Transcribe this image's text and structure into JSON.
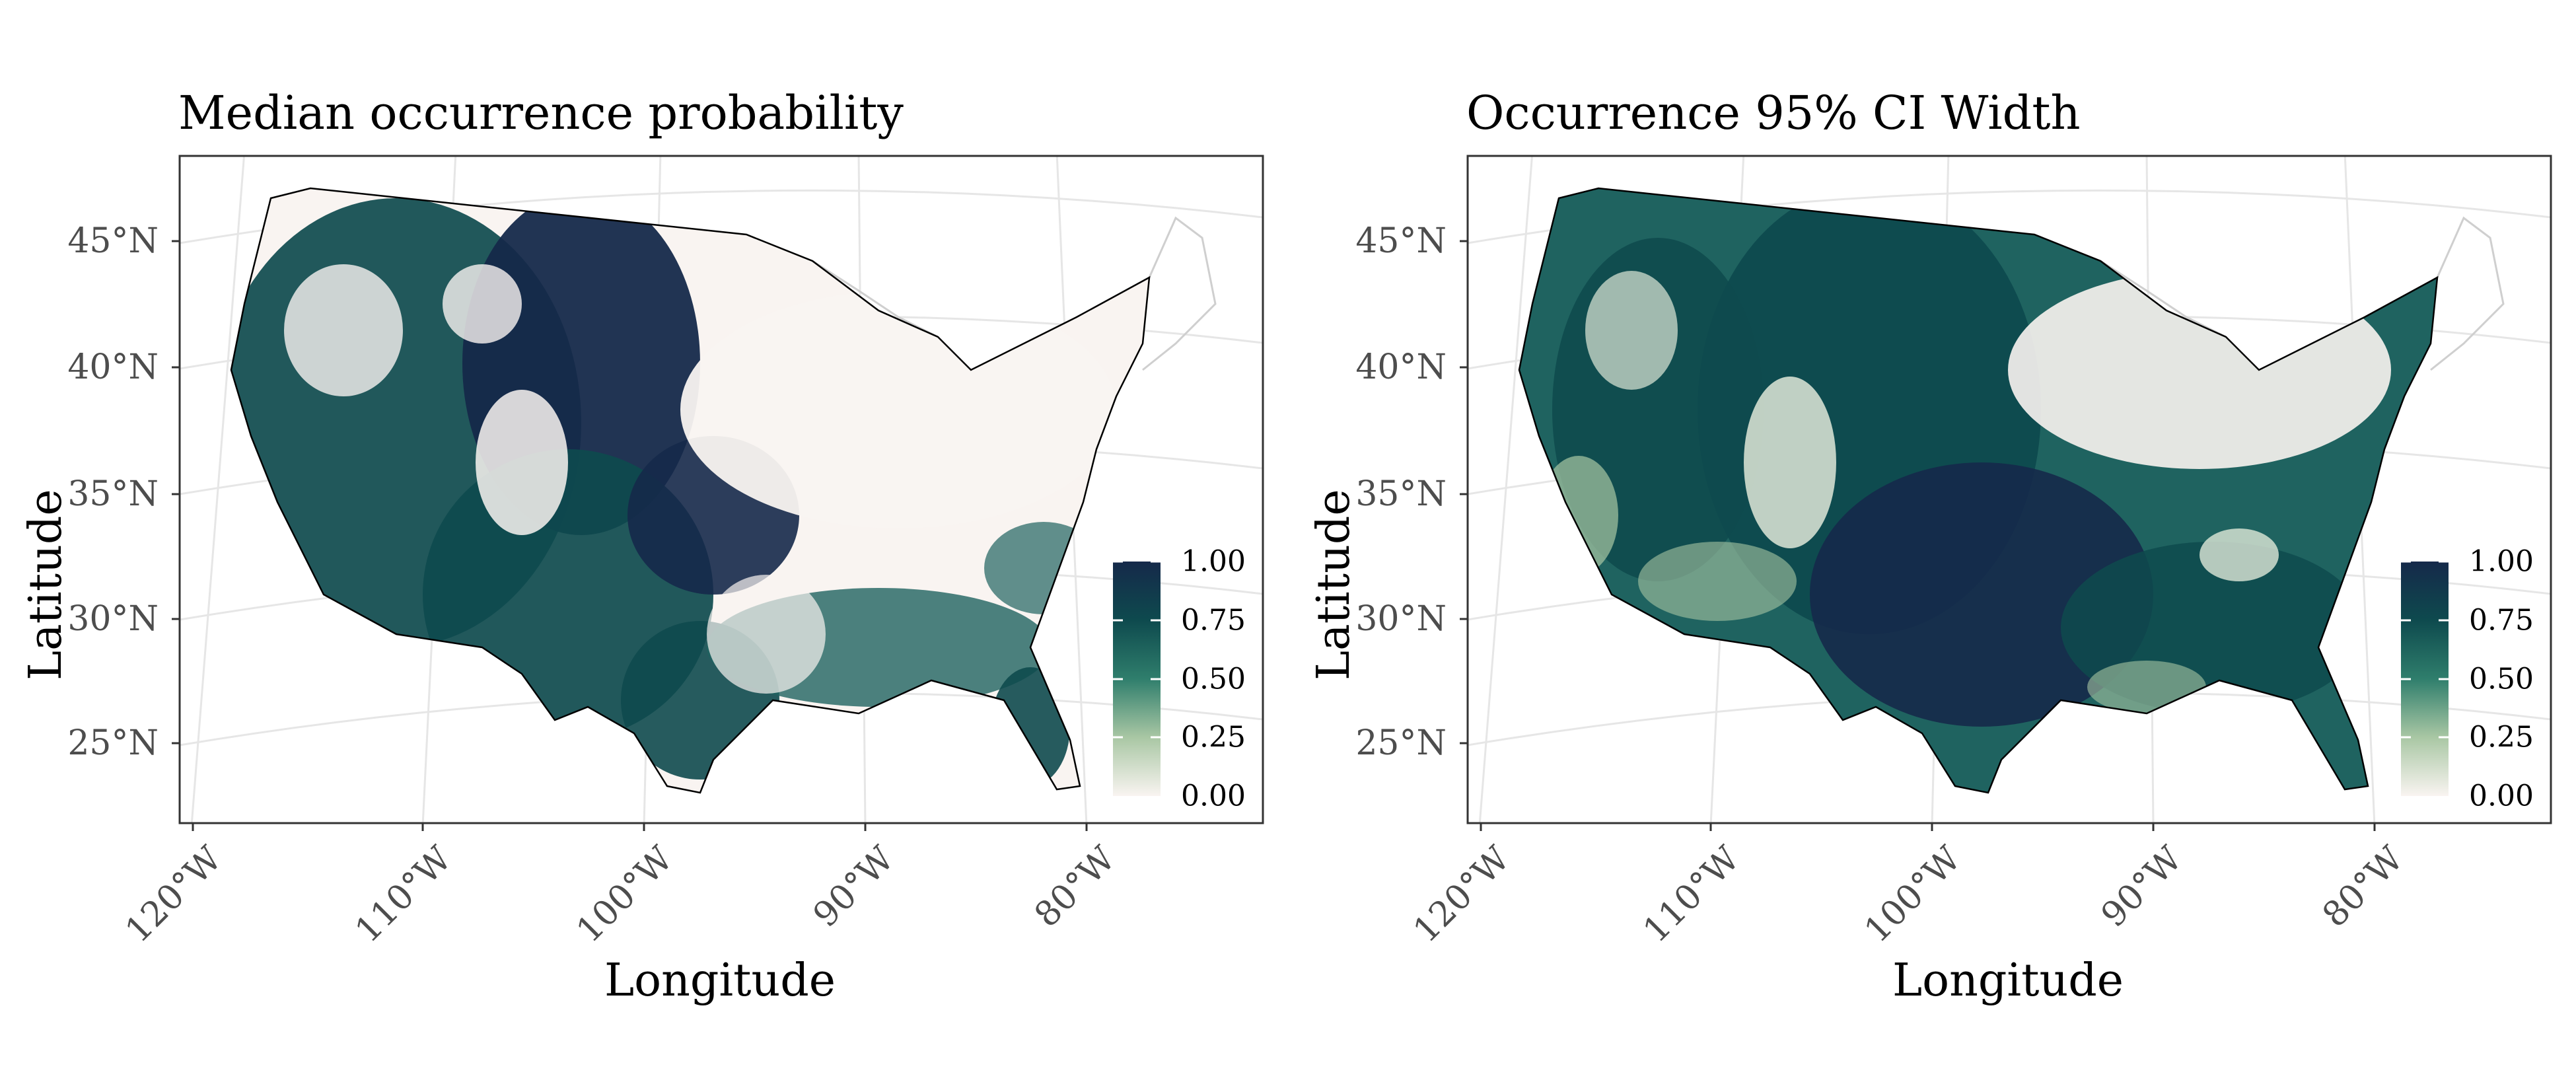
{
  "figure": {
    "panels": [
      {
        "title": "Median occurrence probability",
        "xlabel": "Longitude",
        "ylabel": "Latitude",
        "x_ticks": [
          "120°W",
          "110°W",
          "100°W",
          "90°W",
          "80°W"
        ],
        "y_ticks": [
          "45°N",
          "40°N",
          "35°N",
          "30°N",
          "25°N"
        ],
        "colorbar": {
          "ticks": [
            "1.00",
            "0.75",
            "0.50",
            "0.25",
            "0.00"
          ],
          "range": [
            0,
            1
          ],
          "colors": [
            "#f9f4f1",
            "#a9c7a4",
            "#2f7e6c",
            "#0e4a4e",
            "#15294a"
          ]
        },
        "dominant_regions": "west, great-plains, texas, south"
      },
      {
        "title": "Occurrence 95% CI Width",
        "xlabel": "Longitude",
        "ylabel": "Latitude",
        "x_ticks": [
          "120°W",
          "110°W",
          "100°W",
          "90°W",
          "80°W"
        ],
        "y_ticks": [
          "45°N",
          "40°N",
          "35°N",
          "30°N",
          "25°N"
        ],
        "colorbar": {
          "ticks": [
            "1.00",
            "0.75",
            "0.50",
            "0.25",
            "0.00"
          ],
          "range": [
            0,
            1
          ],
          "colors": [
            "#f9f4f1",
            "#a9c7a4",
            "#2f7e6c",
            "#0e4a4e",
            "#15294a"
          ]
        },
        "dominant_regions": "broad, center, south"
      }
    ]
  },
  "chart_data": [
    {
      "type": "heatmap",
      "title": "Median occurrence probability",
      "xlabel": "Longitude",
      "ylabel": "Latitude",
      "x_ticks": [
        "120°W",
        "110°W",
        "100°W",
        "90°W",
        "80°W"
      ],
      "y_ticks": [
        "45°N",
        "40°N",
        "35°N",
        "30°N",
        "25°N"
      ],
      "color_range": [
        0,
        1
      ],
      "colorbar_ticks": [
        0.0,
        0.25,
        0.5,
        0.75,
        1.0
      ]
    },
    {
      "type": "heatmap",
      "title": "Occurrence 95% CI Width",
      "xlabel": "Longitude",
      "ylabel": "Latitude",
      "x_ticks": [
        "120°W",
        "110°W",
        "100°W",
        "90°W",
        "80°W"
      ],
      "y_ticks": [
        "45°N",
        "40°N",
        "35°N",
        "30°N",
        "25°N"
      ],
      "color_range": [
        0,
        1
      ],
      "colorbar_ticks": [
        0.0,
        0.25,
        0.5,
        0.75,
        1.0
      ]
    }
  ]
}
